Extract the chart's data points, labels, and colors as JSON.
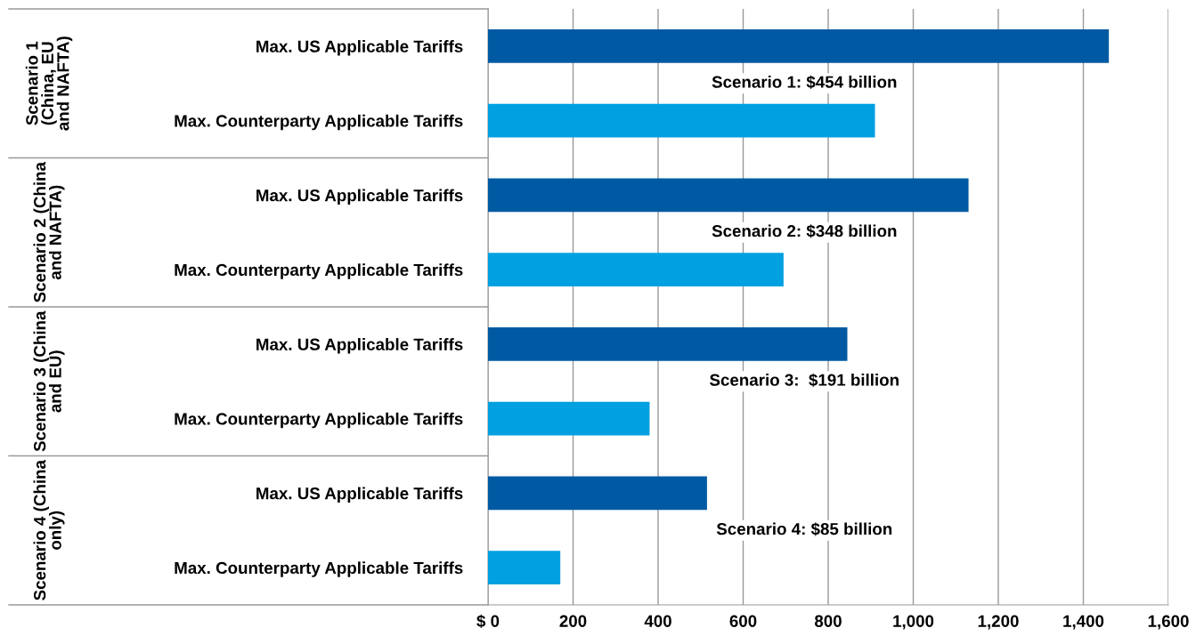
{
  "chart_data": {
    "type": "bar",
    "orientation": "horizontal",
    "categories": [
      "Max. US Applicable Tariffs",
      "Max. Counterparty Applicable Tariffs",
      "Max. US Applicable Tariffs",
      "Max. Counterparty Applicable Tariffs",
      "Max. US Applicable Tariffs",
      "Max. Counterparty Applicable Tariffs",
      "Max. US Applicable Tariffs",
      "Max. Counterparty Applicable Tariffs"
    ],
    "values": [
      1460,
      910,
      1130,
      695,
      845,
      380,
      515,
      170
    ],
    "colors": [
      "#005aa3",
      "#00a0e1",
      "#005aa3",
      "#00a0e1",
      "#005aa3",
      "#00a0e1",
      "#005aa3",
      "#00a0e1"
    ],
    "xlim": [
      0,
      1600
    ],
    "xticks": [
      {
        "value": 0,
        "label": "$ 0"
      },
      200,
      400,
      600,
      800,
      {
        "value": 1000,
        "label": "1,000"
      },
      {
        "value": 1200,
        "label": "1,200"
      },
      {
        "value": 1400,
        "label": "1,400"
      },
      {
        "value": 1600,
        "label": "1,600"
      }
    ],
    "grid": "x",
    "annotations": [
      "Scenario 1\n(China, EU\nand NAFTA)",
      "Scenario 2 (China\nand NAFTA)",
      "Scenario 3 (China\nand EU)",
      "Scenario 4 (China\nonly)",
      "Scenario 1: $454 billion",
      "Scenario 2: $348 billion",
      "Scenario 3:  $191 billion",
      "Scenario 4: $85 billion"
    ]
  }
}
